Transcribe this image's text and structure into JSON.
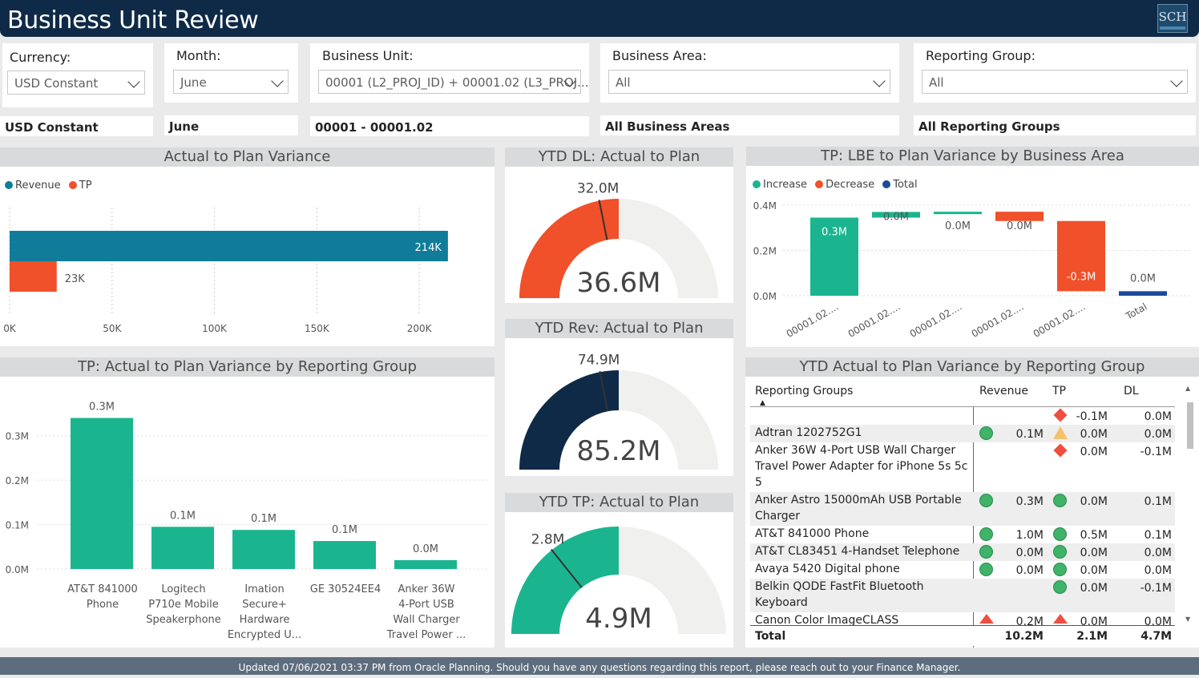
{
  "header": {
    "title": "Business Unit Review",
    "logo_text": "SCH"
  },
  "slicers": {
    "currency": {
      "label": "Currency:",
      "value": "USD Constant"
    },
    "month": {
      "label": "Month:",
      "value": "June"
    },
    "business_unit": {
      "label": "Business Unit:",
      "value": "00001 (L2_PROJ_ID) + 00001.02 (L3_PROJ..."
    },
    "business_area": {
      "label": "Business Area:",
      "value": "All"
    },
    "reporting_group": {
      "label": "Reporting Group:",
      "value": "All"
    }
  },
  "summary": {
    "currency": "USD Constant",
    "month": "June",
    "business_unit": "00001 - 00001.02",
    "business_area": "All Business Areas",
    "reporting_group": "All Reporting Groups"
  },
  "panels": {
    "actual_to_plan": "Actual to Plan Variance",
    "ytd_dl": "YTD DL: Actual to Plan",
    "ytd_rev": "YTD Rev: Actual to Plan",
    "ytd_tp": "YTD TP: Actual to Plan",
    "tp_lbe": "TP: LBE to Plan Variance by Business Area",
    "tp_reporting_group": "TP: Actual to Plan Variance by Reporting Group",
    "ytd_table": "YTD Actual to Plan Variance by Reporting Group"
  },
  "colors": {
    "revenue": "#107c9a",
    "tp": "#f0502a",
    "increase": "#1ab58f",
    "decrease": "#f0502a",
    "total": "#1a4a9a",
    "gauge_dl": "#f0502a",
    "gauge_rev": "#0f2a47",
    "gauge_tp": "#1ab58f",
    "gauge_bg": "#f0f0ef"
  },
  "chart_data": [
    {
      "id": "actual_to_plan",
      "type": "bar",
      "orientation": "horizontal",
      "title": "Actual to Plan Variance",
      "series": [
        {
          "name": "Revenue",
          "values": [
            214
          ],
          "label": "214K"
        },
        {
          "name": "TP",
          "values": [
            23
          ],
          "label": "23K"
        }
      ],
      "x_ticks": [
        "0K",
        "50K",
        "100K",
        "150K",
        "200K"
      ],
      "xlim": [
        0,
        225
      ],
      "legend": "top-left"
    },
    {
      "id": "ytd_dl",
      "type": "gauge",
      "title": "YTD DL: Actual to Plan",
      "value": 36.6,
      "value_label": "36.6M",
      "target": 32.0,
      "target_label": "32.0M",
      "max": 73.2
    },
    {
      "id": "ytd_rev",
      "type": "gauge",
      "title": "YTD Rev: Actual to Plan",
      "value": 85.2,
      "value_label": "85.2M",
      "target": 74.9,
      "target_label": "74.9M",
      "max": 170.4
    },
    {
      "id": "ytd_tp",
      "type": "gauge",
      "title": "YTD TP: Actual to Plan",
      "value": 4.9,
      "value_label": "4.9M",
      "target": 2.8,
      "target_label": "2.8M",
      "max": 9.8
    },
    {
      "id": "tp_lbe",
      "type": "bar",
      "subtype": "waterfall",
      "title": "TP: LBE to Plan Variance by Business Area",
      "categories": [
        "00001.02....",
        "00001.02....",
        "00001.02....",
        "00001.02....",
        "00001.02....",
        "Total"
      ],
      "steps": [
        {
          "kind": "increase",
          "start": 0.0,
          "end": 0.345,
          "label": "0.3M"
        },
        {
          "kind": "increase",
          "start": 0.345,
          "end": 0.37,
          "label": "0.0M"
        },
        {
          "kind": "increase",
          "start": 0.37,
          "end": 0.371,
          "label": "0.0M"
        },
        {
          "kind": "decrease",
          "start": 0.371,
          "end": 0.33,
          "label": "0.0M"
        },
        {
          "kind": "decrease",
          "start": 0.33,
          "end": 0.02,
          "label": "-0.3M"
        },
        {
          "kind": "total",
          "start": 0.0,
          "end": 0.02,
          "label": "0.0M"
        }
      ],
      "y_ticks": [
        "0.0M",
        "0.2M",
        "0.4M"
      ],
      "ylim": [
        0,
        0.4
      ],
      "legend_entries": [
        "Increase",
        "Decrease",
        "Total"
      ],
      "legend": "top-left"
    },
    {
      "id": "tp_reporting_group",
      "type": "bar",
      "title": "TP: Actual to Plan Variance by Reporting Group",
      "categories": [
        [
          "AT&T 841000",
          "Phone"
        ],
        [
          "Logitech",
          "P710e Mobile",
          "Speakerphone"
        ],
        [
          "Imation",
          "Secure+",
          "Hardware",
          "Encrypted U..."
        ],
        [
          "GE 30524EE4"
        ],
        [
          "Anker 36W",
          "4-Port USB",
          "Wall Charger",
          "Travel Power ..."
        ]
      ],
      "values": [
        0.34,
        0.095,
        0.088,
        0.063,
        0.02
      ],
      "labels": [
        "0.3M",
        "0.1M",
        "0.1M",
        "0.1M",
        "0.0M"
      ],
      "y_ticks": [
        "0.0M",
        "0.1M",
        "0.2M",
        "0.3M"
      ],
      "ylim": [
        0,
        0.35
      ]
    }
  ],
  "table": {
    "headers": {
      "group": "Reporting Groups",
      "revenue": "Revenue",
      "tp": "TP",
      "dl": "DL"
    },
    "rows": [
      {
        "name": "",
        "rev_icon": "",
        "rev": "",
        "tp_icon": "diamond-red",
        "tp": "-0.1M",
        "dl": "0.0M"
      },
      {
        "name": "Adtran 1202752G1",
        "rev_icon": "circle-green",
        "rev": "0.1M",
        "tp_icon": "triangle-amber",
        "tp": "0.0M",
        "dl": "0.0M"
      },
      {
        "name": "Anker 36W 4-Port USB Wall Charger\nTravel Power Adapter for iPhone 5s 5c\n5",
        "rev_icon": "",
        "rev": "",
        "tp_icon": "diamond-red",
        "tp": "0.0M",
        "dl": "-0.1M"
      },
      {
        "name": "Anker Astro 15000mAh USB Portable\nCharger",
        "rev_icon": "circle-green",
        "rev": "0.3M",
        "tp_icon": "circle-green",
        "tp": "0.0M",
        "dl": "0.1M"
      },
      {
        "name": "AT&T 841000 Phone",
        "rev_icon": "circle-green",
        "rev": "1.0M",
        "tp_icon": "circle-green",
        "tp": "0.5M",
        "dl": "0.1M"
      },
      {
        "name": "AT&T CL83451 4-Handset Telephone",
        "rev_icon": "circle-green",
        "rev": "0.0M",
        "tp_icon": "circle-green",
        "tp": "0.0M",
        "dl": "0.0M"
      },
      {
        "name": "Avaya 5420 Digital phone",
        "rev_icon": "circle-green",
        "rev": "0.0M",
        "tp_icon": "circle-green",
        "tp": "0.0M",
        "dl": "0.0M"
      },
      {
        "name": "Belkin QODE FastFit Bluetooth\nKeyboard",
        "rev_icon": "",
        "rev": "",
        "tp_icon": "circle-green",
        "tp": "0.0M",
        "dl": "-0.1M"
      },
      {
        "name": "Canon Color ImageCLASS",
        "rev_icon": "triangle-red",
        "rev": "0.2M",
        "tp_icon": "triangle-red",
        "tp": "0.0M",
        "dl": "0.0M"
      }
    ],
    "total": {
      "name": "Total",
      "rev": "10.2M",
      "tp": "2.1M",
      "dl": "4.7M"
    }
  },
  "footer": "Updated 07/06/2021 03:37 PM from Oracle Planning. Should you have any questions regarding this report, please reach out to your Finance Manager."
}
